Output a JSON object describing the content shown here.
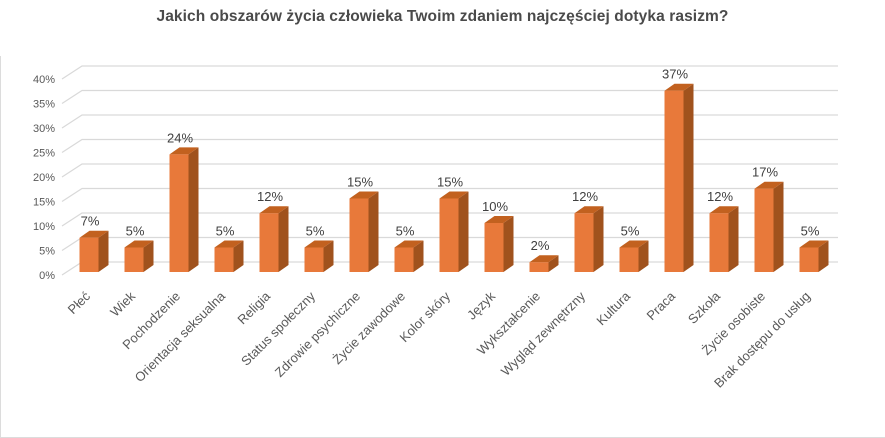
{
  "page": {
    "background": "#ffffff"
  },
  "chart_data": {
    "type": "bar",
    "variant": "3d-column",
    "title": "Jakich obszarów życia człowieka Twoim zdaniem najczęściej dotyka rasizm?",
    "categories": [
      "Płeć",
      "Wiek",
      "Pochodzenie",
      "Orientacja seksualna",
      "Religia",
      "Status społeczny",
      "Zdrowie psychiczne",
      "Życie zawodowe",
      "Kolor skóry",
      "Język",
      "Wykształcenie",
      "Wygląd zewnętrzny",
      "Kultura",
      "Praca",
      "Szkoła",
      "Życie osobiste",
      "Brak dostępu do usług"
    ],
    "values": [
      7,
      5,
      24,
      5,
      12,
      5,
      15,
      5,
      15,
      10,
      2,
      12,
      5,
      37,
      12,
      17,
      5
    ],
    "unit": "%",
    "xlabel": "",
    "ylabel": "",
    "ylim": [
      0,
      40
    ],
    "ytick_step": 5,
    "ytick_labels": [
      "0%",
      "5%",
      "10%",
      "15%",
      "20%",
      "25%",
      "30%",
      "35%",
      "40%"
    ],
    "grid": true,
    "legend": false,
    "data_labels_visible": true,
    "category_label_rotation_deg": -45,
    "colors": {
      "bar_front": "#E8793A",
      "bar_top": "#C2611F",
      "bar_side": "#A0521D",
      "gridline": "#D9D9D9",
      "title_text": "#4A4A4A",
      "axis_text": "#595959",
      "data_label_text": "#404040"
    }
  }
}
